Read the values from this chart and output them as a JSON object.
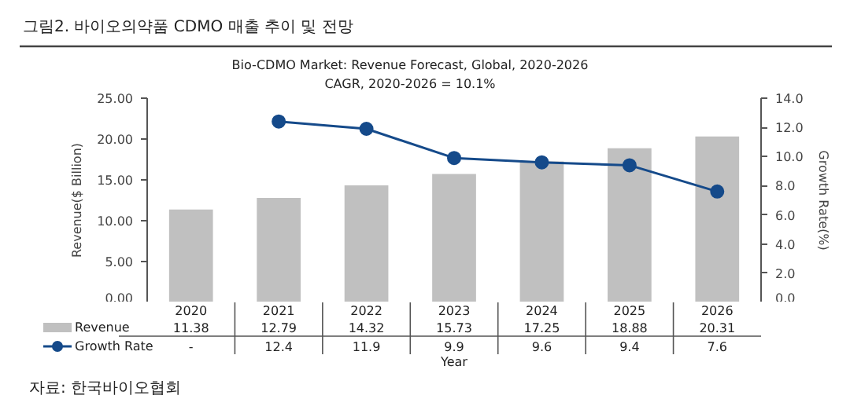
{
  "chart_data": {
    "type": "bar",
    "title": "그림2. 바이오의약품 CDMO 매출 추이 및 전망",
    "subtitle": "Bio-CDMO Market: Revenue Forecast, Global, 2020-2026",
    "annotations": [
      "CAGR, 2020-2026 = 10.1%",
      "자료: 한국바이오협회"
    ],
    "xlabel": "Year",
    "ylabel": "Revenue($ Billion)",
    "y2label": "Growth Rate(%)",
    "categories": [
      "2020",
      "2021",
      "2022",
      "2023",
      "2024",
      "2025",
      "2026"
    ],
    "series": [
      {
        "name": "Revenue",
        "color": "#c0c0c0",
        "values": [
          11.38,
          12.79,
          14.32,
          15.73,
          17.25,
          18.88,
          20.31
        ],
        "value_labels": [
          "11.38",
          "12.79",
          "14.32",
          "15.73",
          "17.25",
          "18.88",
          "20.31"
        ]
      },
      {
        "name": "Growth Rate",
        "type": "line",
        "axis": "y2",
        "color": "#154a8a",
        "marker": "circle",
        "values": [
          null,
          12.4,
          11.9,
          9.9,
          9.6,
          9.4,
          7.6
        ],
        "value_labels": [
          "-",
          "12.4",
          "11.9",
          "9.9",
          "9.6",
          "9.4",
          "7.6"
        ]
      }
    ],
    "ylim": [
      0,
      25
    ],
    "yticks": [
      {
        "value": 0,
        "label": "0.00"
      },
      {
        "value": 5,
        "label": "5.00"
      },
      {
        "value": 10,
        "label": "10.00"
      },
      {
        "value": 15,
        "label": "15.00"
      },
      {
        "value": 20,
        "label": "20.00"
      },
      {
        "value": 25,
        "label": "25.00"
      }
    ],
    "y2lim": [
      0,
      14
    ],
    "y2ticks": [
      {
        "value": 0,
        "label": "0.0"
      },
      {
        "value": 2,
        "label": "2.0"
      },
      {
        "value": 4,
        "label": "4.0"
      },
      {
        "value": 6,
        "label": "6.0"
      },
      {
        "value": 8,
        "label": "8.0"
      },
      {
        "value": 10,
        "label": "10.0"
      },
      {
        "value": 12,
        "label": "12.0"
      },
      {
        "value": 14,
        "label": "14.0"
      }
    ],
    "grid": false,
    "legend": "bottom"
  }
}
